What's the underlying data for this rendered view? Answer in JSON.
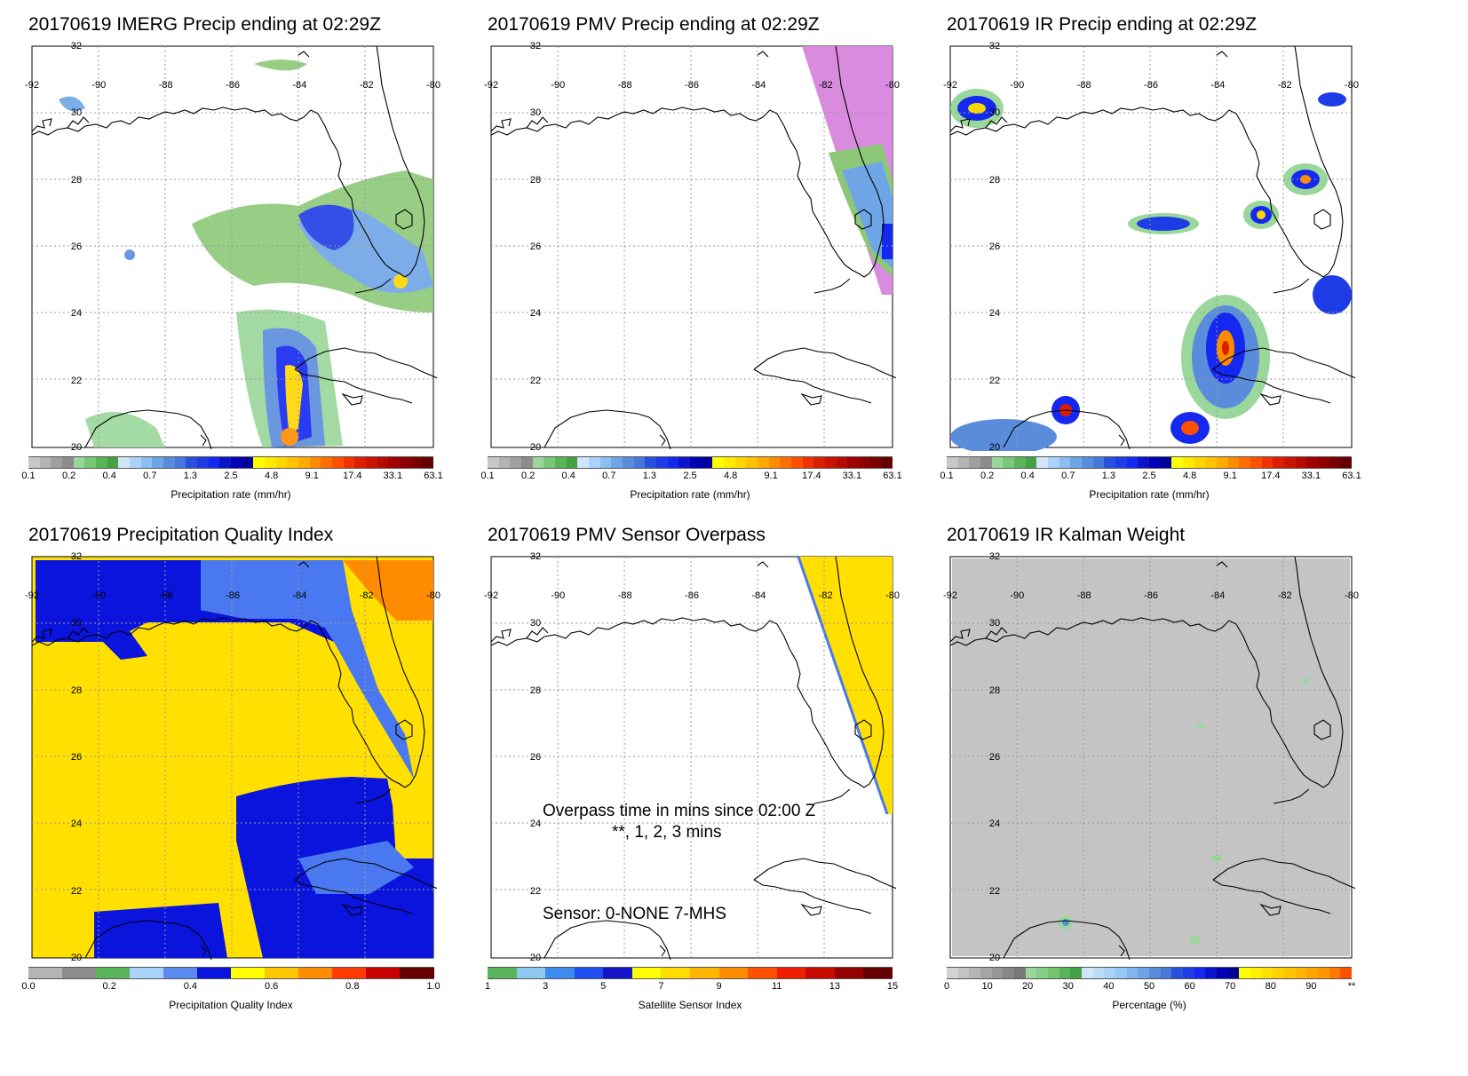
{
  "panels": [
    {
      "title": "20170619 IMERG Precip ending at 02:29Z"
    },
    {
      "title": "20170619 PMV Precip ending at 02:29Z"
    },
    {
      "title": "20170619 IR Precip ending at 02:29Z"
    },
    {
      "title": "20170619 Precipitation Quality Index"
    },
    {
      "title": "20170619 PMV Sensor Overpass"
    },
    {
      "title": "20170619 IR Kalman Weight"
    }
  ],
  "map_axes": {
    "lon_labels": [
      "-92",
      "-90",
      "-88",
      "-86",
      "-84",
      "-82",
      "-80"
    ],
    "lat_labels": [
      "32",
      "30",
      "28",
      "26",
      "24",
      "22",
      "20"
    ]
  },
  "colorbars": {
    "precip": {
      "ticks": [
        "0.1",
        "0.2",
        "0.4",
        "0.7",
        "1.3",
        "2.5",
        "4.8",
        "9.1",
        "17.4",
        "33.1",
        "63.1"
      ],
      "label": "Precipitation rate (mm/hr)",
      "colors": [
        "#c8c8c8",
        "#b4b4b4",
        "#a0a0a0",
        "#8c8c8c",
        "#9ad79a",
        "#78c878",
        "#5ab45a",
        "#46a046",
        "#d2e6fa",
        "#aad2fa",
        "#8cbef0",
        "#6ea5e6",
        "#5a8cdc",
        "#4678dc",
        "#2850dc",
        "#1e3ce6",
        "#1428f0",
        "#0a14c8",
        "#0000b4",
        "#000096",
        "#ffff00",
        "#ffeb00",
        "#ffd700",
        "#ffc300",
        "#ffaa00",
        "#ff8c00",
        "#ff6e00",
        "#ff5000",
        "#f03200",
        "#dc1e00",
        "#c81400",
        "#b40a00",
        "#a00000",
        "#8c0000",
        "#780000",
        "#640000"
      ]
    },
    "quality": {
      "ticks": [
        "0.0",
        "0.2",
        "0.4",
        "0.6",
        "0.8",
        "1.0"
      ],
      "label": "Precipitation Quality Index",
      "colors": [
        "#b4b4b4",
        "#8c8c8c",
        "#5ab45a",
        "#aad2fa",
        "#5a8cf0",
        "#0a14dc",
        "#ffff00",
        "#ffc800",
        "#ff8c00",
        "#ff3c00",
        "#c80000",
        "#640000"
      ]
    },
    "sensor": {
      "ticks": [
        "1",
        "3",
        "5",
        "7",
        "9",
        "11",
        "13",
        "15"
      ],
      "label": "Satellite Sensor Index",
      "colors": [
        "#5ab45a",
        "#8cc8f0",
        "#3c8cf0",
        "#1e50f0",
        "#1414c8",
        "#ffff00",
        "#ffdc00",
        "#ffb400",
        "#ff8c00",
        "#ff5000",
        "#f01e00",
        "#c80a00",
        "#960000",
        "#640000"
      ]
    },
    "weight": {
      "ticks": [
        "0",
        "10",
        "20",
        "30",
        "40",
        "50",
        "60",
        "70",
        "80",
        "90",
        "**"
      ],
      "label": "Percentage (%)",
      "colors": [
        "#d2d2d2",
        "#c3c3c3",
        "#b4b4b4",
        "#a5a5a5",
        "#969696",
        "#878787",
        "#787878",
        "#9ad79a",
        "#86cd86",
        "#72c372",
        "#5ab45a",
        "#46a046",
        "#d2e6fa",
        "#bedcfa",
        "#aad2fa",
        "#96c8f5",
        "#82b4f0",
        "#6ea5e6",
        "#5a8cdc",
        "#4678dc",
        "#2850dc",
        "#1e3ce6",
        "#1428f0",
        "#0a14c8",
        "#0000b4",
        "#000096",
        "#ffff00",
        "#fff000",
        "#ffe100",
        "#ffd200",
        "#ffc300",
        "#ffb400",
        "#ffa500",
        "#ff9600",
        "#ff7800",
        "#ff5000"
      ]
    }
  },
  "overpass_note": {
    "line1": "Overpass time in mins since 02:00 Z",
    "line2": "**, 1, 2, 3 mins",
    "line3": "Sensor:   0-NONE  7-MHS"
  },
  "colors": {
    "coast": "#000000",
    "grid": "#9a9a9a",
    "pmv_fill": "#d98be0",
    "quality_yellow": "#ffe000",
    "quality_blue_dark": "#0a14dc",
    "quality_blue_mid": "#4a78f0",
    "quality_orange": "#ff8c00",
    "weight_gray": "#c4c4c4"
  }
}
